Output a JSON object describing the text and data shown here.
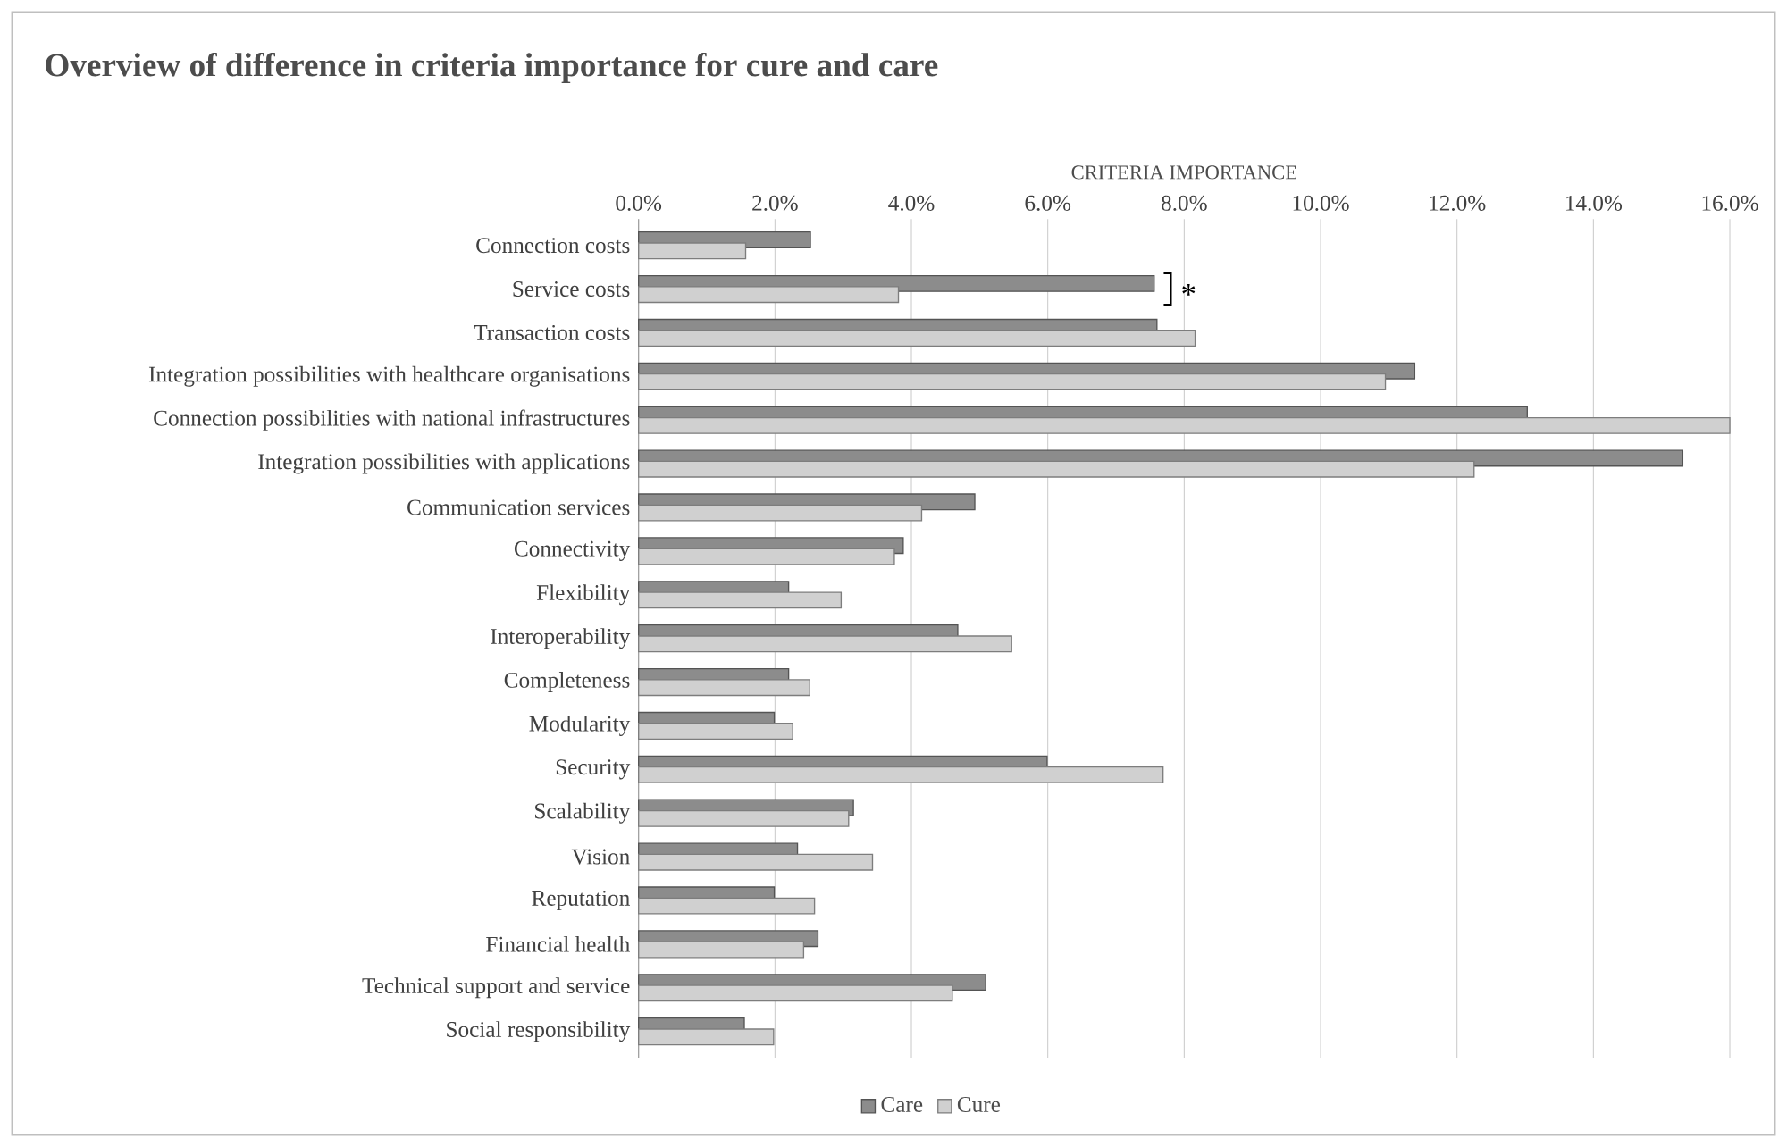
{
  "chart_data": {
    "type": "bar",
    "orientation": "horizontal",
    "title": "Overview of difference in criteria importance for cure and care",
    "xlabel": "CRITERIA IMPORTANCE",
    "categories": [
      "Connection costs",
      "Service costs",
      "Transaction costs",
      "Integration possibilities with healthcare organisations",
      "Connection possibilities with national infrastructures",
      "Integration possibilities with applications",
      "Communication services",
      "Connectivity",
      "Flexibility",
      "Interoperability",
      "Completeness",
      "Modularity",
      "Security",
      "Scalability",
      "Vision",
      "Reputation",
      "Financial health",
      "Technical support and service",
      "Social responsibility"
    ],
    "series": [
      {
        "name": "Care",
        "color": "#8c8c8c",
        "values": [
          2.52,
          7.56,
          7.6,
          11.38,
          13.03,
          15.31,
          4.93,
          3.88,
          2.2,
          4.68,
          2.2,
          1.99,
          5.99,
          3.15,
          2.33,
          1.99,
          2.63,
          5.09,
          1.55
        ]
      },
      {
        "name": "Cure",
        "color": "#d0d0d0",
        "values": [
          1.57,
          3.81,
          8.16,
          10.95,
          16.0,
          12.25,
          4.15,
          3.75,
          2.97,
          5.47,
          2.51,
          2.26,
          7.69,
          3.08,
          3.43,
          2.58,
          2.42,
          4.6,
          1.98
        ]
      }
    ],
    "xlim": [
      0,
      16
    ],
    "xticks": [
      {
        "value": 0,
        "label": "0.0%"
      },
      {
        "value": 2,
        "label": "2.0%"
      },
      {
        "value": 4,
        "label": "4.0%"
      },
      {
        "value": 6,
        "label": "6.0%"
      },
      {
        "value": 8,
        "label": "8.0%"
      },
      {
        "value": 10,
        "label": "10.0%"
      },
      {
        "value": 12,
        "label": "12.0%"
      },
      {
        "value": 14,
        "label": "14.0%"
      },
      {
        "value": 16,
        "label": "16.0%"
      }
    ],
    "annotations": [
      "*"
    ],
    "grid": "x",
    "legend": "bottom"
  }
}
